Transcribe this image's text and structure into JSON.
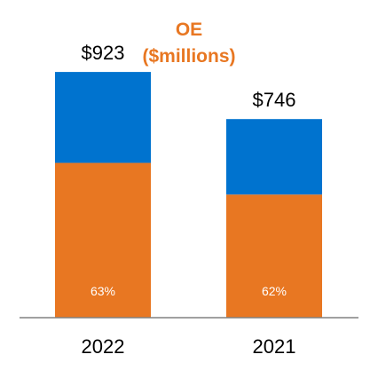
{
  "chart_data": {
    "type": "bar",
    "stacked": true,
    "title_line1": "OE",
    "title_line2": "($millions)",
    "title_color": "#E87722",
    "categories": [
      "2022",
      "2021"
    ],
    "totals": [
      923,
      746
    ],
    "total_labels": [
      "$923",
      "$746"
    ],
    "series": [
      {
        "color": "#E87722",
        "percent": [
          63,
          62
        ],
        "percent_labels": [
          "63%",
          "62%"
        ]
      },
      {
        "color": "#0073CF",
        "percent": [
          37,
          38
        ]
      }
    ],
    "ylim": [
      0,
      1000
    ],
    "grid": false,
    "legend": "none",
    "axis_color": "#808080"
  }
}
